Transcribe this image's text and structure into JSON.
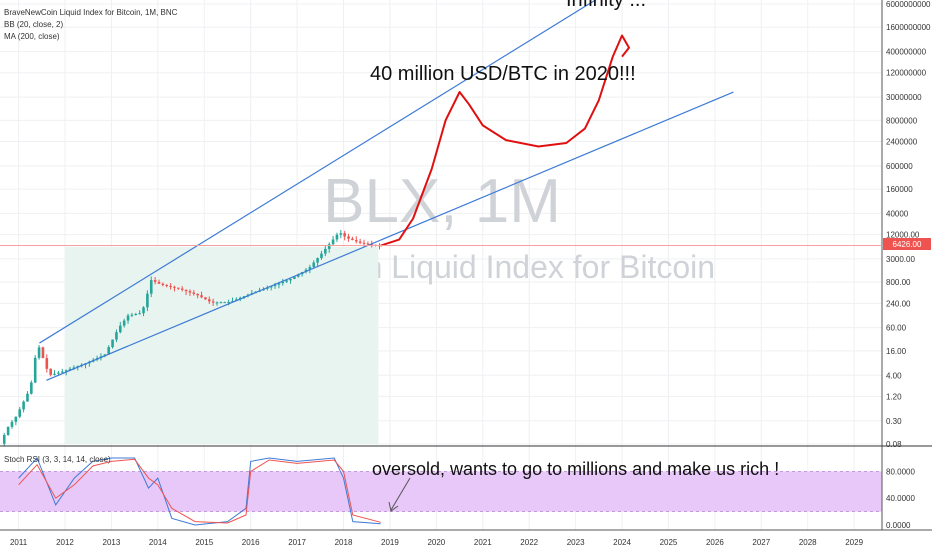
{
  "legend": {
    "symbol_line": "BraveNewCoin Liquid Index for Bitcoin, 1M, BNC",
    "bb_line": "BB (20, close, 2)",
    "ma_line": "MA (200, close)",
    "stoch_line": "Stoch RSI (3, 3, 14, 14, close)"
  },
  "watermark": {
    "symbol": "BLX, 1M",
    "name": "BraveNewCoin Liquid Index for Bitcoin"
  },
  "annotations": {
    "top": "Infinity ...",
    "target": "40 million USD/BTC in 2020!!!",
    "stoch": "oversold, wants to go to millions and make us rich !"
  },
  "price_badge": "6426.00",
  "colors": {
    "channel": "#3d7bd6",
    "projection": "#e01010",
    "stoch_band": "#e8c8f8",
    "bb_fill": "#e8f4f0",
    "up": "#26a69a",
    "down": "#ef5350",
    "badge": "#ef5350",
    "stoch_k": "#3d7bd6",
    "stoch_d": "#ef5350"
  },
  "chart_data": {
    "type": "candlestick",
    "y_scale": "log",
    "xlim": [
      2010.6,
      2029.6
    ],
    "ylim": [
      0.08,
      6000000000
    ],
    "x_ticks": [
      "2011",
      "2012",
      "2013",
      "2014",
      "2015",
      "2016",
      "2017",
      "2018",
      "2019",
      "2020",
      "2021",
      "2022",
      "2023",
      "2024",
      "2025",
      "2026",
      "2027",
      "2028",
      "2029"
    ],
    "y_ticks": [
      {
        "label": "6000000000",
        "v": 6000000000
      },
      {
        "label": "1600000000",
        "v": 1600000000
      },
      {
        "label": "400000000",
        "v": 400000000
      },
      {
        "label": "120000000",
        "v": 120000000
      },
      {
        "label": "30000000",
        "v": 30000000
      },
      {
        "label": "8000000",
        "v": 8000000
      },
      {
        "label": "2400000",
        "v": 2400000
      },
      {
        "label": "600000",
        "v": 600000
      },
      {
        "label": "160000",
        "v": 160000
      },
      {
        "label": "40000",
        "v": 40000
      },
      {
        "label": "12000.00",
        "v": 12000
      },
      {
        "label": "3000.00",
        "v": 3000
      },
      {
        "label": "800.00",
        "v": 800
      },
      {
        "label": "240.00",
        "v": 240
      },
      {
        "label": "60.00",
        "v": 60
      },
      {
        "label": "16.00",
        "v": 16
      },
      {
        "label": "4.00",
        "v": 4
      },
      {
        "label": "1.20",
        "v": 1.2
      },
      {
        "label": "0.30",
        "v": 0.3
      },
      {
        "label": "0.08",
        "v": 0.08
      }
    ],
    "price_path": [
      {
        "x": 2010.6,
        "y": 0.06
      },
      {
        "x": 2010.8,
        "y": 0.2
      },
      {
        "x": 2011.0,
        "y": 0.4
      },
      {
        "x": 2011.3,
        "y": 2
      },
      {
        "x": 2011.45,
        "y": 25
      },
      {
        "x": 2011.7,
        "y": 4
      },
      {
        "x": 2012.0,
        "y": 5
      },
      {
        "x": 2012.5,
        "y": 8
      },
      {
        "x": 2012.9,
        "y": 13
      },
      {
        "x": 2013.2,
        "y": 60
      },
      {
        "x": 2013.4,
        "y": 120
      },
      {
        "x": 2013.7,
        "y": 140
      },
      {
        "x": 2013.9,
        "y": 900
      },
      {
        "x": 2014.1,
        "y": 700
      },
      {
        "x": 2014.5,
        "y": 550
      },
      {
        "x": 2014.9,
        "y": 380
      },
      {
        "x": 2015.2,
        "y": 250
      },
      {
        "x": 2015.6,
        "y": 260
      },
      {
        "x": 2016.0,
        "y": 400
      },
      {
        "x": 2016.5,
        "y": 650
      },
      {
        "x": 2016.9,
        "y": 960
      },
      {
        "x": 2017.3,
        "y": 1800
      },
      {
        "x": 2017.6,
        "y": 4500
      },
      {
        "x": 2017.95,
        "y": 14000
      },
      {
        "x": 2018.1,
        "y": 10000
      },
      {
        "x": 2018.4,
        "y": 7500
      },
      {
        "x": 2018.6,
        "y": 6800
      },
      {
        "x": 2018.8,
        "y": 6426
      }
    ],
    "channel_upper": [
      {
        "x": 2011.45,
        "y": 25
      },
      {
        "x": 2023.6,
        "y": 10000000000
      }
    ],
    "channel_lower": [
      {
        "x": 2011.6,
        "y": 3
      },
      {
        "x": 2026.4,
        "y": 40000000
      }
    ],
    "projection": [
      {
        "x": 2018.8,
        "y": 6426
      },
      {
        "x": 2019.2,
        "y": 9000
      },
      {
        "x": 2019.5,
        "y": 30000
      },
      {
        "x": 2019.9,
        "y": 500000
      },
      {
        "x": 2020.2,
        "y": 8000000
      },
      {
        "x": 2020.5,
        "y": 40000000
      },
      {
        "x": 2020.7,
        "y": 20000000
      },
      {
        "x": 2021.0,
        "y": 6000000
      },
      {
        "x": 2021.5,
        "y": 2600000
      },
      {
        "x": 2022.2,
        "y": 1800000
      },
      {
        "x": 2022.8,
        "y": 2200000
      },
      {
        "x": 2023.2,
        "y": 5000000
      },
      {
        "x": 2023.5,
        "y": 25000000
      },
      {
        "x": 2023.8,
        "y": 300000000
      },
      {
        "x": 2024.0,
        "y": 1000000000
      },
      {
        "x": 2024.15,
        "y": 500000000
      },
      {
        "x": 2024.0,
        "y": 300000000
      }
    ],
    "stoch": {
      "ylim": [
        0,
        100
      ],
      "y_ticks": [
        {
          "label": "80.0000",
          "v": 80
        },
        {
          "label": "40.0000",
          "v": 40
        },
        {
          "label": "0.0000",
          "v": 0
        }
      ],
      "band": [
        20,
        80
      ],
      "k": [
        {
          "x": 2011.0,
          "y": 70
        },
        {
          "x": 2011.4,
          "y": 100
        },
        {
          "x": 2011.8,
          "y": 30
        },
        {
          "x": 2012.2,
          "y": 70
        },
        {
          "x": 2012.6,
          "y": 95
        },
        {
          "x": 2013.0,
          "y": 100
        },
        {
          "x": 2013.5,
          "y": 100
        },
        {
          "x": 2013.8,
          "y": 55
        },
        {
          "x": 2014.0,
          "y": 70
        },
        {
          "x": 2014.3,
          "y": 10
        },
        {
          "x": 2014.8,
          "y": 0
        },
        {
          "x": 2015.5,
          "y": 5
        },
        {
          "x": 2015.9,
          "y": 25
        },
        {
          "x": 2016.0,
          "y": 95
        },
        {
          "x": 2016.4,
          "y": 100
        },
        {
          "x": 2017.0,
          "y": 95
        },
        {
          "x": 2017.8,
          "y": 100
        },
        {
          "x": 2018.0,
          "y": 70
        },
        {
          "x": 2018.2,
          "y": 5
        },
        {
          "x": 2018.8,
          "y": 2
        }
      ],
      "d": [
        {
          "x": 2011.0,
          "y": 60
        },
        {
          "x": 2011.4,
          "y": 90
        },
        {
          "x": 2011.8,
          "y": 40
        },
        {
          "x": 2012.2,
          "y": 60
        },
        {
          "x": 2012.6,
          "y": 88
        },
        {
          "x": 2013.0,
          "y": 95
        },
        {
          "x": 2013.5,
          "y": 98
        },
        {
          "x": 2013.8,
          "y": 70
        },
        {
          "x": 2014.0,
          "y": 60
        },
        {
          "x": 2014.3,
          "y": 25
        },
        {
          "x": 2014.8,
          "y": 5
        },
        {
          "x": 2015.5,
          "y": 3
        },
        {
          "x": 2015.9,
          "y": 15
        },
        {
          "x": 2016.0,
          "y": 80
        },
        {
          "x": 2016.4,
          "y": 97
        },
        {
          "x": 2017.0,
          "y": 92
        },
        {
          "x": 2017.8,
          "y": 97
        },
        {
          "x": 2018.0,
          "y": 80
        },
        {
          "x": 2018.2,
          "y": 15
        },
        {
          "x": 2018.8,
          "y": 4
        }
      ]
    }
  }
}
